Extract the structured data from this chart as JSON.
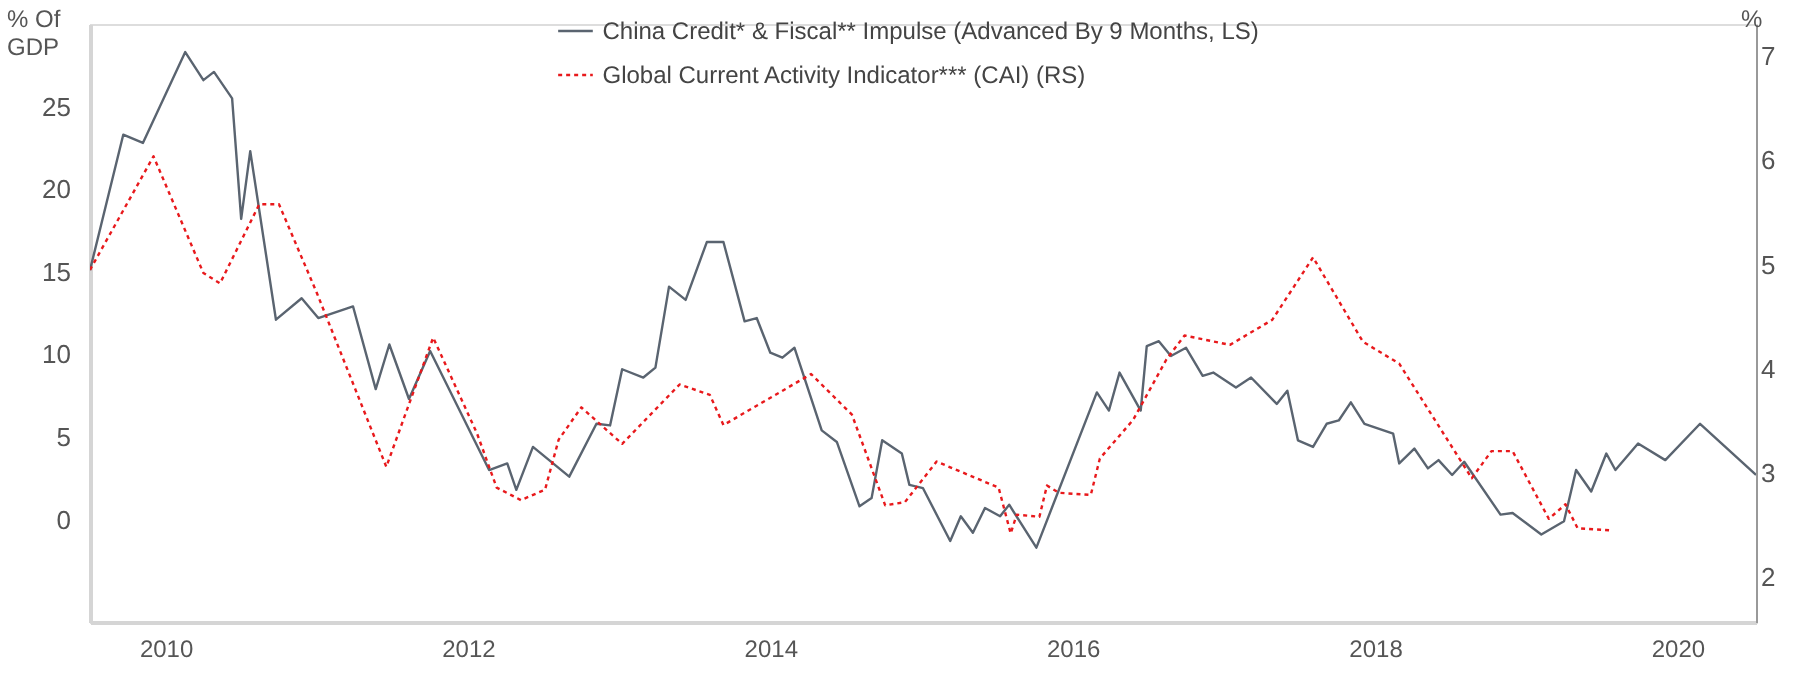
{
  "chart_data": {
    "type": "line",
    "ylabel": "% Of GDP",
    "y2label": "%",
    "xlim": [
      2009.5,
      2020.52
    ],
    "xticks": [
      2010,
      2012,
      2014,
      2016,
      2018,
      2020
    ],
    "ylim": [
      -6.2,
      30.0
    ],
    "yticks": [
      0,
      5,
      10,
      15,
      20,
      25
    ],
    "y2lim": [
      1.57,
      7.31
    ],
    "y2ticks": [
      2,
      3,
      4,
      5,
      6,
      7
    ],
    "grid": false,
    "legend": "top",
    "marker": "none",
    "series": [
      {
        "name": "China Credit* & Fiscal** Impulse (Advanced By 9 Months, LS)",
        "color": "#5a6470",
        "line_style": "solid",
        "x": [
          2009.5,
          2009.72,
          2009.85,
          2010.13,
          2010.25,
          2010.32,
          2010.44,
          2010.5,
          2010.56,
          2010.73,
          2010.9,
          2011.01,
          2011.24,
          2011.39,
          2011.48,
          2011.61,
          2011.75,
          2012.14,
          2012.26,
          2012.32,
          2012.43,
          2012.67,
          2012.85,
          2012.94,
          2013.02,
          2013.16,
          2013.24,
          2013.33,
          2013.44,
          2013.58,
          2013.69,
          2013.83,
          2013.91,
          2014.0,
          2014.08,
          2014.16,
          2014.34,
          2014.44,
          2014.59,
          2014.67,
          2014.74,
          2014.87,
          2014.92,
          2015.01,
          2015.19,
          2015.26,
          2015.34,
          2015.42,
          2015.52,
          2015.58,
          2015.76,
          2016.16,
          2016.24,
          2016.31,
          2016.45,
          2016.49,
          2016.57,
          2016.65,
          2016.75,
          2016.86,
          2016.93,
          2017.08,
          2017.18,
          2017.35,
          2017.42,
          2017.49,
          2017.59,
          2017.68,
          2017.76,
          2017.84,
          2017.93,
          2018.12,
          2018.16,
          2018.26,
          2018.35,
          2018.42,
          2018.51,
          2018.59,
          2018.83,
          2018.91,
          2019.1,
          2019.25,
          2019.33,
          2019.43,
          2019.53,
          2019.59,
          2019.74,
          2019.92,
          2020.15,
          2020.52
        ],
        "values": [
          15.1,
          23.3,
          22.8,
          28.3,
          26.6,
          27.1,
          25.5,
          18.2,
          22.3,
          12.1,
          13.4,
          12.2,
          12.9,
          7.9,
          10.6,
          7.3,
          10.2,
          3.0,
          3.4,
          1.8,
          4.4,
          2.6,
          5.8,
          5.7,
          9.1,
          8.6,
          9.2,
          14.1,
          13.3,
          16.8,
          16.8,
          12.0,
          12.2,
          10.1,
          9.8,
          10.4,
          5.4,
          4.7,
          0.8,
          1.3,
          4.8,
          4.0,
          2.1,
          1.9,
          -1.3,
          0.2,
          -0.8,
          0.7,
          0.2,
          0.9,
          -1.7,
          7.7,
          6.6,
          8.9,
          6.6,
          10.5,
          10.8,
          9.9,
          10.4,
          8.7,
          8.9,
          8.0,
          8.6,
          7.0,
          7.8,
          4.8,
          4.4,
          5.8,
          6.0,
          7.1,
          5.8,
          5.2,
          3.4,
          4.3,
          3.1,
          3.6,
          2.7,
          3.5,
          0.3,
          0.4,
          -0.9,
          -0.1,
          3.0,
          1.7,
          4.0,
          3.0,
          4.6,
          3.6,
          5.8,
          2.7
        ]
      },
      {
        "name": "Global Current Activity Indicator*** (CAI) (RS)",
        "color": "#e8191c",
        "line_style": "dotted",
        "axis": "y2",
        "x": [
          2009.5,
          2009.92,
          2010.25,
          2010.36,
          2010.62,
          2010.75,
          2011.0,
          2011.46,
          2011.77,
          2012.06,
          2012.19,
          2012.35,
          2012.51,
          2012.6,
          2012.75,
          2013.02,
          2013.4,
          2013.6,
          2013.69,
          2014.27,
          2014.54,
          2014.76,
          2014.89,
          2015.1,
          2015.51,
          2015.59,
          2015.63,
          2015.78,
          2015.83,
          2015.91,
          2016.12,
          2016.18,
          2016.4,
          2016.62,
          2016.74,
          2017.04,
          2017.32,
          2017.59,
          2017.92,
          2018.16,
          2018.64,
          2018.77,
          2018.91,
          2019.15,
          2019.26,
          2019.34,
          2019.55
        ],
        "values": [
          4.95,
          6.04,
          4.92,
          4.82,
          5.58,
          5.58,
          4.73,
          3.06,
          4.3,
          3.38,
          2.86,
          2.74,
          2.84,
          3.32,
          3.63,
          3.28,
          3.85,
          3.75,
          3.46,
          3.95,
          3.56,
          2.69,
          2.72,
          3.11,
          2.86,
          2.42,
          2.6,
          2.58,
          2.88,
          2.81,
          2.79,
          3.14,
          3.51,
          4.09,
          4.32,
          4.23,
          4.47,
          5.07,
          4.26,
          4.05,
          2.95,
          3.21,
          3.21,
          2.56,
          2.7,
          2.47,
          2.45
        ]
      }
    ]
  }
}
